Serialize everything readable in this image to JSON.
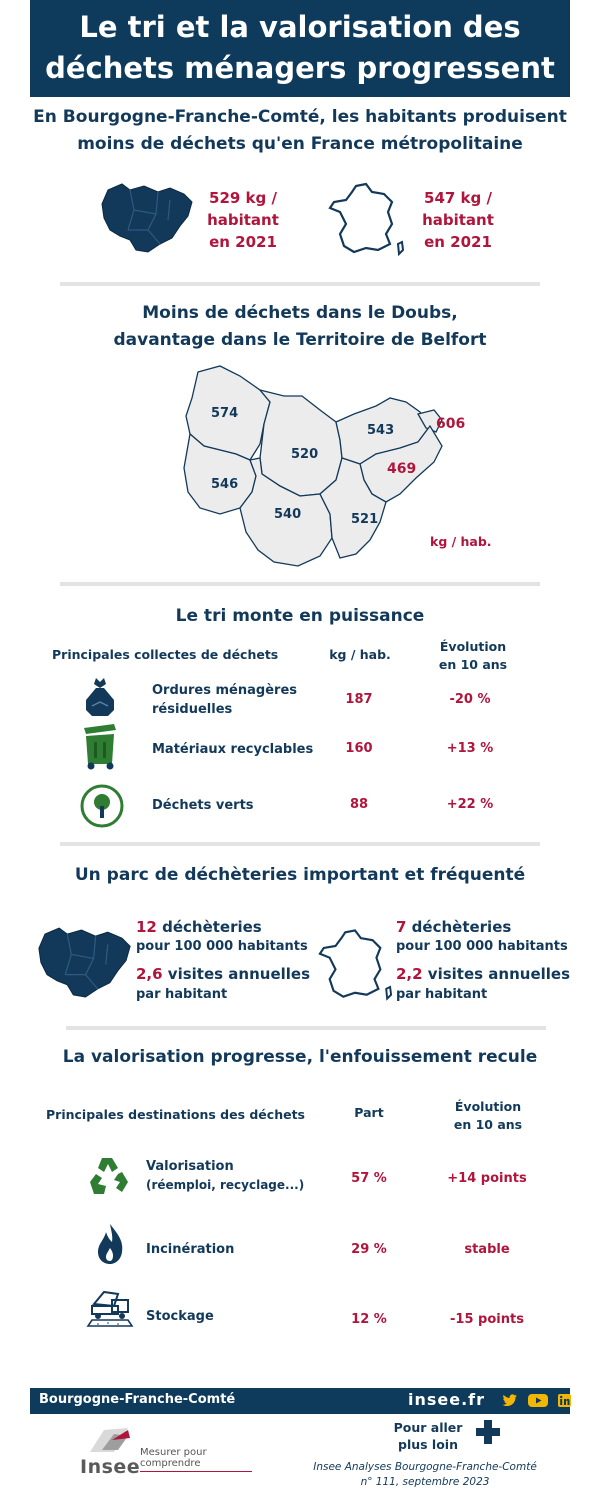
{
  "header": {
    "title_line1": "Le tri et la valorisation des",
    "title_line2": "déchets ménagers progressent"
  },
  "section1": {
    "heading_line1": "En Bourgogne-Franche-Comté, les habitants produisent",
    "heading_line2": "moins de déchets qu'en France métropolitaine",
    "region": {
      "line1": "529 kg /",
      "line2": "habitant",
      "line3": "en 2021"
    },
    "france": {
      "line1": "547 kg /",
      "line2": "habitant",
      "line3": "en 2021"
    }
  },
  "section2": {
    "heading_line1": "Moins de déchets dans le Doubs,",
    "heading_line2": "davantage dans le Territoire de Belfort",
    "departments": [
      {
        "value": "574"
      },
      {
        "value": "520"
      },
      {
        "value": "543"
      },
      {
        "value": "606"
      },
      {
        "value": "546"
      },
      {
        "value": "469"
      },
      {
        "value": "540"
      },
      {
        "value": "521"
      }
    ],
    "unit": "kg / hab."
  },
  "section3": {
    "heading": "Le tri monte en puissance",
    "col_main": "Principales collectes de déchets",
    "col_kg": "kg / hab.",
    "col_evo_line1": "Évolution",
    "col_evo_line2": "en 10 ans",
    "rows": [
      {
        "label_line1": "Ordures ménagères",
        "label_line2": "résiduelles",
        "kg": "187",
        "evo": "-20 %",
        "icon": "trash-bag-icon"
      },
      {
        "label_line1": "Matériaux recyclables",
        "label_line2": "",
        "kg": "160",
        "evo": "+13 %",
        "icon": "recycling-bin-icon"
      },
      {
        "label_line1": "Déchets verts",
        "label_line2": "",
        "kg": "88",
        "evo": "+22 %",
        "icon": "green-waste-icon"
      }
    ]
  },
  "section4": {
    "heading": "Un parc de déchèteries important et fréquenté",
    "region": {
      "count": "12",
      "count_label": " déchèteries",
      "per": "pour 100 000 habitants",
      "visits": "2,6",
      "visits_label": " visites annuelles",
      "per_hab": "par habitant"
    },
    "france": {
      "count": "7",
      "count_label": " déchèteries",
      "per": "pour 100 000 habitants",
      "visits": "2,2",
      "visits_label": " visites annuelles",
      "per_hab": "par habitant"
    }
  },
  "section5": {
    "heading": "La valorisation progresse, l'enfouissement recule",
    "col_main": "Principales destinations des déchets",
    "col_part": "Part",
    "col_evo_line1": "Évolution",
    "col_evo_line2": "en 10 ans",
    "rows": [
      {
        "label_line1": "Valorisation",
        "label_line2": "(réemploi, recyclage...)",
        "part": "57 %",
        "evo": "+14 points",
        "icon": "recycle-arrows-icon"
      },
      {
        "label_line1": "Incinération",
        "label_line2": "",
        "part": "29 %",
        "evo": "stable",
        "icon": "flame-icon"
      },
      {
        "label_line1": "Stockage",
        "label_line2": "",
        "part": "12 %",
        "evo": "-15 points",
        "icon": "landfill-truck-icon"
      }
    ]
  },
  "footer": {
    "region": "Bourgogne-Franche-Comté",
    "site": "insee.fr",
    "more_line1": "Pour aller",
    "more_line2": "plus loin",
    "logo_text": "Insee",
    "tagline": "Mesurer pour comprendre",
    "pub_line1": "Insee Analyses Bourgogne-Franche-Comté",
    "pub_line2": "n° 111, septembre 2023"
  },
  "colors": {
    "navy": "#0e3a5c",
    "accent_red": "#b0153c",
    "divider": "#e3e3e3",
    "map_grey": "#ececec"
  }
}
